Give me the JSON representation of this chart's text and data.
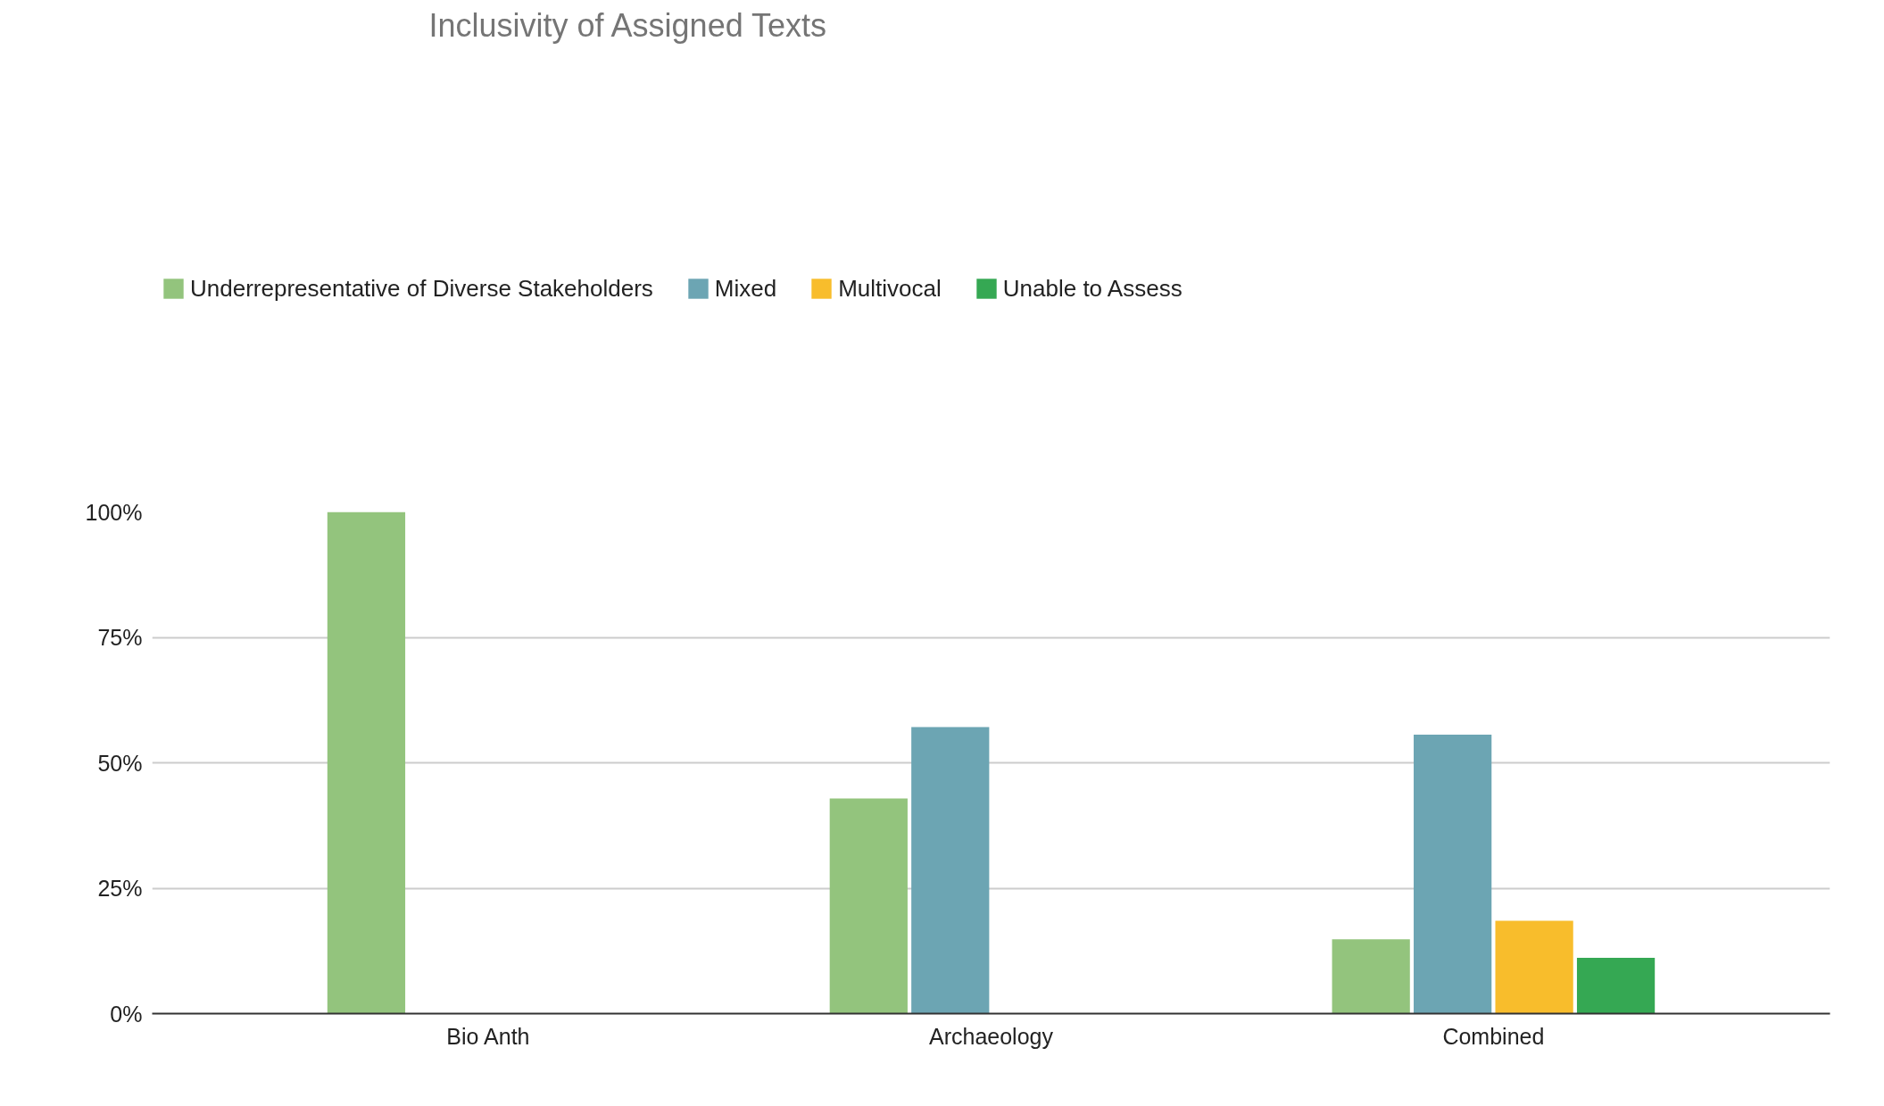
{
  "chart_data": {
    "type": "bar",
    "title": "Inclusivity of Assigned Texts",
    "categories": [
      "Bio Anth",
      "Archaeology",
      "Combined"
    ],
    "series": [
      {
        "name": "Underrepresentative of Diverse Stakeholders",
        "color": "#93c47d",
        "values": [
          100,
          42.9,
          14.8
        ]
      },
      {
        "name": "Mixed",
        "color": "#6ca5b3",
        "values": [
          null,
          57.1,
          55.6
        ]
      },
      {
        "name": "Multivocal",
        "color": "#f8bd2c",
        "values": [
          null,
          null,
          18.5
        ]
      },
      {
        "name": "Unable to Assess",
        "color": "#35a853",
        "values": [
          null,
          null,
          11.1
        ]
      }
    ],
    "ylim": [
      0,
      100
    ],
    "yticks": [
      {
        "value": 0,
        "label": "0%"
      },
      {
        "value": 25,
        "label": "25%"
      },
      {
        "value": 50,
        "label": "50%"
      },
      {
        "value": 75,
        "label": "75%"
      },
      {
        "value": 100,
        "label": "100%"
      }
    ],
    "grid": "y",
    "legend": "top left"
  }
}
